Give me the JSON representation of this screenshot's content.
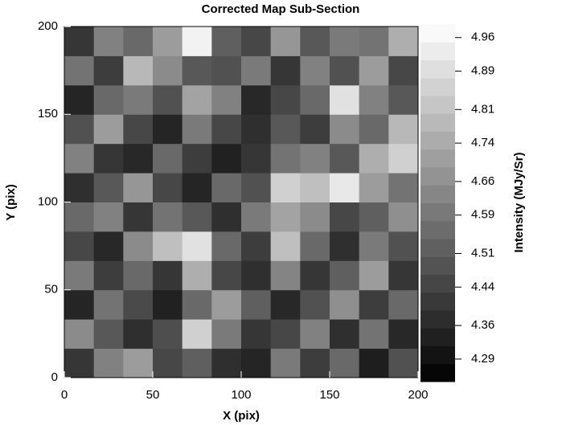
{
  "chart_data": {
    "type": "heatmap",
    "title": "Corrected Map Sub-Section",
    "x_label": "X (pix)",
    "y_label": "Y (pix)",
    "colorbar_label": "Intensity (MJy/Sr)",
    "xlim": [
      0,
      200
    ],
    "ylim": [
      0,
      200
    ],
    "xticks": [
      0,
      50,
      100,
      150,
      200
    ],
    "yticks": [
      0,
      50,
      100,
      150,
      200
    ],
    "zlim": [
      4.243,
      4.988
    ],
    "zticks": [
      4.29,
      4.36,
      4.44,
      4.51,
      4.59,
      4.66,
      4.74,
      4.81,
      4.89,
      4.96
    ],
    "z": [
      [
        4.4,
        4.62,
        4.7,
        4.45,
        4.52,
        4.38,
        4.35,
        4.6,
        4.42,
        4.55,
        4.33,
        4.48
      ],
      [
        4.65,
        4.5,
        4.38,
        4.47,
        4.85,
        4.6,
        4.4,
        4.45,
        4.62,
        4.38,
        4.58,
        4.36
      ],
      [
        4.35,
        4.58,
        4.46,
        4.34,
        4.55,
        4.7,
        4.52,
        4.36,
        4.48,
        4.66,
        4.42,
        4.55
      ],
      [
        4.6,
        4.42,
        4.55,
        4.4,
        4.75,
        4.45,
        4.38,
        4.63,
        4.4,
        4.52,
        4.7,
        4.4
      ],
      [
        4.45,
        4.36,
        4.65,
        4.8,
        4.9,
        4.55,
        4.42,
        4.8,
        4.55,
        4.38,
        4.6,
        4.48
      ],
      [
        4.55,
        4.62,
        4.4,
        4.58,
        4.5,
        4.38,
        4.6,
        4.72,
        4.65,
        4.45,
        4.52,
        4.66
      ],
      [
        4.38,
        4.5,
        4.68,
        4.45,
        4.35,
        4.55,
        4.48,
        4.85,
        4.8,
        4.92,
        4.7,
        4.58
      ],
      [
        4.62,
        4.4,
        4.36,
        4.55,
        4.42,
        4.34,
        4.4,
        4.58,
        4.62,
        4.5,
        4.75,
        4.85
      ],
      [
        4.48,
        4.7,
        4.45,
        4.35,
        4.6,
        4.45,
        4.38,
        4.5,
        4.42,
        4.65,
        4.55,
        4.78
      ],
      [
        4.35,
        4.55,
        4.6,
        4.48,
        4.72,
        4.62,
        4.36,
        4.45,
        4.55,
        4.9,
        4.62,
        4.5
      ],
      [
        4.58,
        4.42,
        4.78,
        4.65,
        4.5,
        4.48,
        4.6,
        4.4,
        4.62,
        4.48,
        4.7,
        4.45
      ],
      [
        4.4,
        4.62,
        4.55,
        4.7,
        4.95,
        4.52,
        4.45,
        4.68,
        4.5,
        4.6,
        4.58,
        4.75
      ]
    ]
  }
}
